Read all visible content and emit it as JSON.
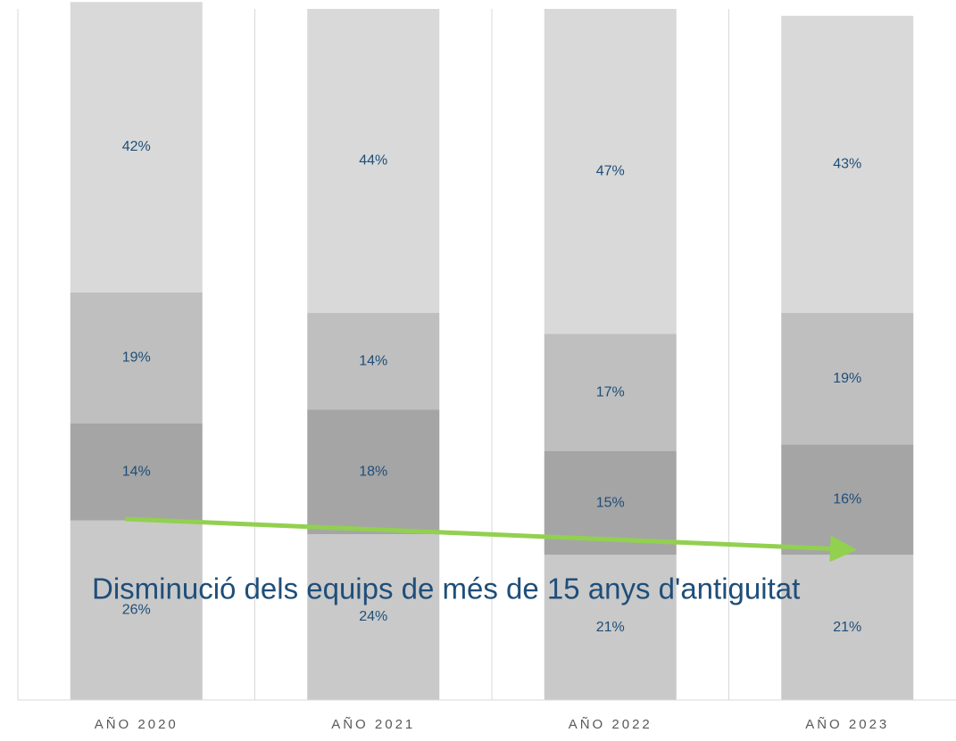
{
  "chart_data": {
    "type": "stacked_bar",
    "categories": [
      "AÑO 2020",
      "AÑO 2021",
      "AÑO 2022",
      "AÑO 2023"
    ],
    "series": [
      {
        "color": "#c9c9c9",
        "values": [
          26,
          24,
          21,
          21
        ],
        "value_labels": [
          "26%",
          "24%",
          "21%",
          "21%"
        ]
      },
      {
        "color": "#a5a5a5",
        "values": [
          14,
          18,
          15,
          16
        ],
        "value_labels": [
          "14%",
          "18%",
          "15%",
          "16%"
        ]
      },
      {
        "color": "#bfbfbf",
        "values": [
          19,
          14,
          17,
          19
        ],
        "value_labels": [
          "19%",
          "14%",
          "17%",
          "19%"
        ]
      },
      {
        "color": "#d9d9d9",
        "values": [
          42,
          44,
          47,
          43
        ],
        "value_labels": [
          "42%",
          "44%",
          "47%",
          "43%"
        ]
      }
    ],
    "ylim": [
      0,
      100
    ],
    "annotation": "Disminució dels equips de més de 15 anys d'antiguitat"
  }
}
